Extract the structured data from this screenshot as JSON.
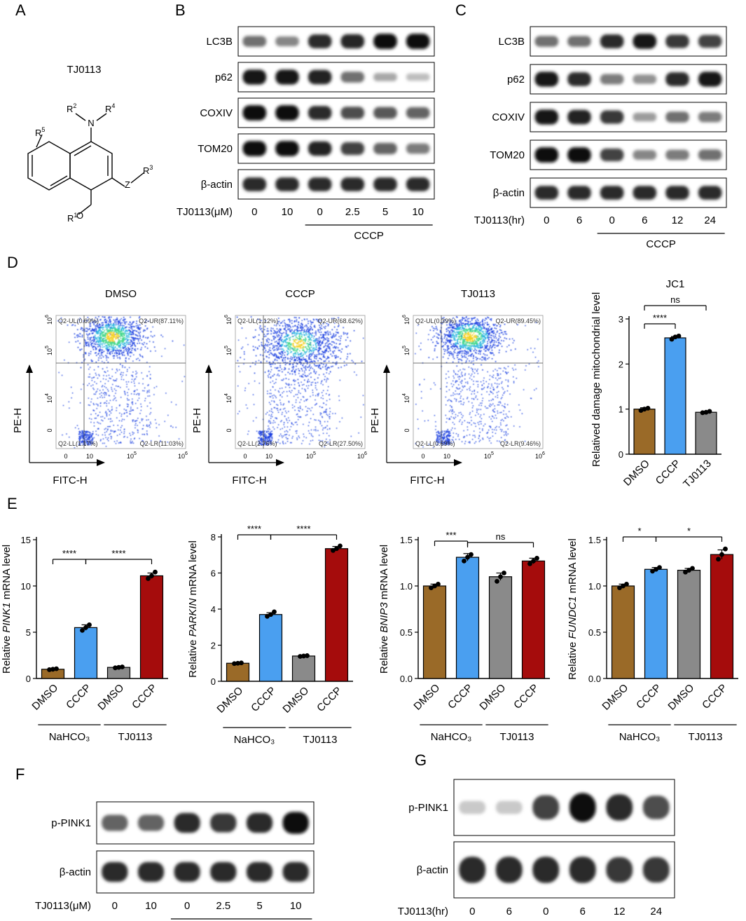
{
  "panelA": {
    "label": "A",
    "compound": "TJ0113",
    "substituents": {
      "r1": "R",
      "r1_sup": "1",
      "r2": "R",
      "r2_sup": "2",
      "r3": "R",
      "r3_sup": "3",
      "r4": "R",
      "r4_sup": "4",
      "r5": "R",
      "r5_sup": "5",
      "n": "N",
      "o": "O",
      "z": "Z"
    }
  },
  "panelB": {
    "label": "B",
    "bands": [
      {
        "name": "LC3B",
        "intensity": [
          0.55,
          0.45,
          0.85,
          0.88,
          1.0,
          1.0
        ]
      },
      {
        "name": "p62",
        "intensity": [
          0.95,
          0.95,
          0.9,
          0.55,
          0.3,
          0.2
        ]
      },
      {
        "name": "COXIV",
        "intensity": [
          1.0,
          1.0,
          0.85,
          0.7,
          0.65,
          0.6
        ]
      },
      {
        "name": "TOM20",
        "intensity": [
          1.0,
          1.0,
          0.9,
          0.75,
          0.6,
          0.5
        ]
      },
      {
        "name": "β-actin",
        "intensity": [
          0.85,
          0.85,
          0.85,
          0.85,
          0.85,
          0.85
        ]
      }
    ],
    "treatment_label": "TJ0113(μM)",
    "doses": [
      "0",
      "10",
      "0",
      "2.5",
      "5",
      "10"
    ],
    "group_label": "CCCP"
  },
  "panelC": {
    "label": "C",
    "bands": [
      {
        "name": "LC3B",
        "intensity": [
          0.55,
          0.55,
          0.85,
          0.95,
          0.8,
          0.75
        ]
      },
      {
        "name": "p62",
        "intensity": [
          0.95,
          0.85,
          0.5,
          0.4,
          0.85,
          0.95
        ]
      },
      {
        "name": "COXIV",
        "intensity": [
          0.95,
          0.9,
          0.8,
          0.35,
          0.55,
          0.5
        ]
      },
      {
        "name": "TOM20",
        "intensity": [
          1.0,
          1.0,
          0.75,
          0.45,
          0.5,
          0.55
        ]
      },
      {
        "name": "β-actin",
        "intensity": [
          0.85,
          0.85,
          0.85,
          0.85,
          0.85,
          0.85
        ]
      }
    ],
    "treatment_label": "TJ0113(hr)",
    "doses": [
      "0",
      "6",
      "0",
      "6",
      "12",
      "24"
    ],
    "group_label": "CCCP"
  },
  "panelD": {
    "label": "D",
    "flow": [
      {
        "title": "DMSO",
        "ul": "Q2-UL(0.69%)",
        "ur": "Q2-UR(87.11%)",
        "ll": "Q2-LL(1.17%)",
        "lr": "Q2-LR(11.03%)"
      },
      {
        "title": "CCCP",
        "ul": "Q2-UL(1.12%)",
        "ur": "Q2-UR(68.62%)",
        "ll": "Q2-LL(2.76%)",
        "lr": "Q2-LR(27.50%)"
      },
      {
        "title": "TJ0113",
        "ul": "Q2-UL(0.39%)",
        "ur": "Q2-UR(89.45%)",
        "ll": "Q2-LL(0.69%)",
        "lr": "Q2-LR(9.46%)"
      }
    ],
    "flow_x_label": "FITC-H",
    "flow_y_label": "PE-H",
    "flow_x_ticks": [
      "0",
      "10",
      "10",
      "10"
    ],
    "flow_x_exps": [
      "",
      "",
      "5",
      "6"
    ],
    "flow_y_ticks": [
      "0",
      "10",
      "10",
      "10"
    ],
    "flow_y_exps": [
      "",
      "4",
      "5",
      "6"
    ]
  },
  "chart_data": [
    {
      "type": "bar",
      "title": "JC1",
      "ylabel": "Relatived damage mitochondrial level",
      "categories": [
        "DMSO",
        "CCCP",
        "TJ0113"
      ],
      "values": [
        1.0,
        2.58,
        0.93
      ],
      "errors": [
        0.03,
        0.03,
        0.02
      ],
      "points": [
        [
          0.97,
          1.0,
          1.02
        ],
        [
          2.55,
          2.6,
          2.62
        ],
        [
          0.92,
          0.93,
          0.95
        ]
      ],
      "colors": [
        "#9a6a28",
        "#4a9ff0",
        "#8a8a8a"
      ],
      "ylim": [
        0,
        3
      ],
      "yticks": [
        "0",
        "1",
        "2",
        "3"
      ],
      "significance": [
        {
          "from": 0,
          "to": 1,
          "label": "****"
        },
        {
          "from": 0,
          "to": 2,
          "label": "ns"
        }
      ]
    },
    {
      "type": "bar",
      "ylabel_pre": "Relative",
      "ylabel_gene": "PINK1",
      "ylabel_post": "mRNA level",
      "categories": [
        "DMSO",
        "CCCP",
        "DMSO",
        "CCCP"
      ],
      "groups": [
        "NaHCO₃",
        "TJ0113"
      ],
      "values": [
        1.0,
        5.5,
        1.2,
        11.1
      ],
      "errors": [
        0.1,
        0.3,
        0.1,
        0.3
      ],
      "points": [
        [
          0.95,
          1.0,
          1.05
        ],
        [
          5.2,
          5.5,
          5.8
        ],
        [
          1.15,
          1.2,
          1.25
        ],
        [
          10.8,
          11.1,
          11.5
        ]
      ],
      "colors": [
        "#9a6a28",
        "#4a9ff0",
        "#8a8a8a",
        "#a50c0c"
      ],
      "ylim": [
        0,
        15
      ],
      "yticks": [
        "0",
        "5",
        "10",
        "15"
      ],
      "significance": [
        {
          "from": 0,
          "to": 1,
          "label": "****"
        },
        {
          "from": 1,
          "to": 3,
          "label": "****"
        }
      ]
    },
    {
      "type": "bar",
      "ylabel_pre": "Relative",
      "ylabel_gene": "PARKIN",
      "ylabel_post": "mRNA level",
      "categories": [
        "DMSO",
        "CCCP",
        "DMSO",
        "CCCP"
      ],
      "groups": [
        "NaHCO₃",
        "TJ0113"
      ],
      "values": [
        1.0,
        3.7,
        1.4,
        7.35
      ],
      "errors": [
        0.05,
        0.1,
        0.05,
        0.12
      ],
      "points": [
        [
          0.98,
          1.0,
          1.02
        ],
        [
          3.6,
          3.7,
          3.85
        ],
        [
          1.38,
          1.4,
          1.42
        ],
        [
          7.25,
          7.35,
          7.5
        ]
      ],
      "colors": [
        "#9a6a28",
        "#4a9ff0",
        "#8a8a8a",
        "#a50c0c"
      ],
      "ylim": [
        0,
        8
      ],
      "yticks": [
        "0",
        "2",
        "4",
        "6",
        "8"
      ],
      "significance": [
        {
          "from": 0,
          "to": 1,
          "label": "****"
        },
        {
          "from": 1,
          "to": 3,
          "label": "****"
        }
      ]
    },
    {
      "type": "bar",
      "ylabel_pre": "Relative",
      "ylabel_gene": "BNIP3",
      "ylabel_post": "mRNA level",
      "categories": [
        "DMSO",
        "CCCP",
        "DMSO",
        "CCCP"
      ],
      "groups": [
        "NaHCO₃",
        "TJ0113"
      ],
      "values": [
        1.0,
        1.31,
        1.1,
        1.27
      ],
      "errors": [
        0.02,
        0.04,
        0.04,
        0.03
      ],
      "points": [
        [
          0.98,
          1.0,
          1.02
        ],
        [
          1.27,
          1.31,
          1.34
        ],
        [
          1.05,
          1.1,
          1.14
        ],
        [
          1.24,
          1.27,
          1.3
        ]
      ],
      "colors": [
        "#9a6a28",
        "#4a9ff0",
        "#8a8a8a",
        "#a50c0c"
      ],
      "ylim": [
        0,
        1.5
      ],
      "yticks": [
        "0.0",
        "0.5",
        "1.0",
        "1.5"
      ],
      "significance": [
        {
          "from": 0,
          "to": 1,
          "label": "***"
        },
        {
          "from": 1,
          "to": 3,
          "label": "ns"
        }
      ]
    },
    {
      "type": "bar",
      "ylabel_pre": "Relative",
      "ylabel_gene": "FUNDC1",
      "ylabel_post": "mRNA level",
      "categories": [
        "DMSO",
        "CCCP",
        "DMSO",
        "CCCP"
      ],
      "groups": [
        "NaHCO₃",
        "TJ0113"
      ],
      "values": [
        1.0,
        1.18,
        1.17,
        1.34
      ],
      "errors": [
        0.02,
        0.02,
        0.02,
        0.05
      ],
      "points": [
        [
          0.98,
          1.0,
          1.02
        ],
        [
          1.16,
          1.18,
          1.2
        ],
        [
          1.15,
          1.17,
          1.19
        ],
        [
          1.29,
          1.34,
          1.4
        ]
      ],
      "colors": [
        "#9a6a28",
        "#4a9ff0",
        "#8a8a8a",
        "#a50c0c"
      ],
      "ylim": [
        0,
        1.5
      ],
      "yticks": [
        "0.0",
        "0.5",
        "1.0",
        "1.5"
      ],
      "significance": [
        {
          "from": 0,
          "to": 1,
          "label": "*"
        },
        {
          "from": 1,
          "to": 3,
          "label": "*"
        }
      ]
    }
  ],
  "panelE": {
    "label": "E"
  },
  "panelF": {
    "label": "F",
    "bands": [
      {
        "name": "p-PINK1",
        "intensity": [
          0.6,
          0.6,
          0.85,
          0.8,
          0.85,
          1.0
        ]
      },
      {
        "name": "β-actin",
        "intensity": [
          0.85,
          0.85,
          0.85,
          0.85,
          0.85,
          0.85
        ]
      }
    ],
    "treatment_label": "TJ0113(μM)",
    "doses": [
      "0",
      "10",
      "0",
      "2.5",
      "5",
      "10"
    ],
    "group_label": "CCCP"
  },
  "panelG": {
    "label": "G",
    "bands": [
      {
        "name": "p-PINK1",
        "intensity": [
          0.15,
          0.15,
          0.75,
          1.0,
          0.85,
          0.7
        ]
      },
      {
        "name": "β-actin",
        "intensity": [
          0.85,
          0.85,
          0.85,
          0.85,
          0.8,
          0.8
        ]
      }
    ],
    "treatment_label": "TJ0113(hr)",
    "doses": [
      "0",
      "6",
      "0",
      "6",
      "12",
      "24"
    ],
    "group_label": "CCCP"
  }
}
